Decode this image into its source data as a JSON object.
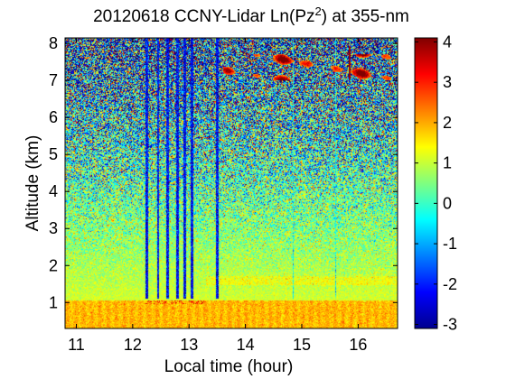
{
  "chart_data": {
    "type": "heatmap",
    "title_prefix": "20120618 CCNY-Lidar Ln(Pz",
    "title_sup": "2",
    "title_suffix": ") at 355-nm",
    "xlabel": "Local time (hour)",
    "ylabel": "Altitude (km)",
    "xlim": [
      10.8,
      16.7
    ],
    "ylim": [
      0.3,
      8.15
    ],
    "xticks": [
      11,
      12,
      13,
      14,
      15,
      16
    ],
    "yticks": [
      1,
      2,
      3,
      4,
      5,
      6,
      7,
      8
    ],
    "colorbar": {
      "colormap": "jet",
      "clim": [
        -3.1,
        4.1
      ],
      "ticks": [
        -3,
        -2,
        -1,
        0,
        1,
        2,
        3,
        4
      ]
    },
    "features": {
      "boundary_layer_top_km": 1.05,
      "residual_layer_km": 1.6,
      "cloud_layer_km": [
        7.0,
        7.7
      ],
      "cloud_time_range_hour": [
        13.6,
        16.7
      ],
      "cloud_max_value": 4.0,
      "precip_streak_times_hour": [
        12.25,
        12.45,
        12.62,
        12.8,
        12.92,
        13.05,
        13.5,
        14.85,
        15.6
      ]
    }
  }
}
